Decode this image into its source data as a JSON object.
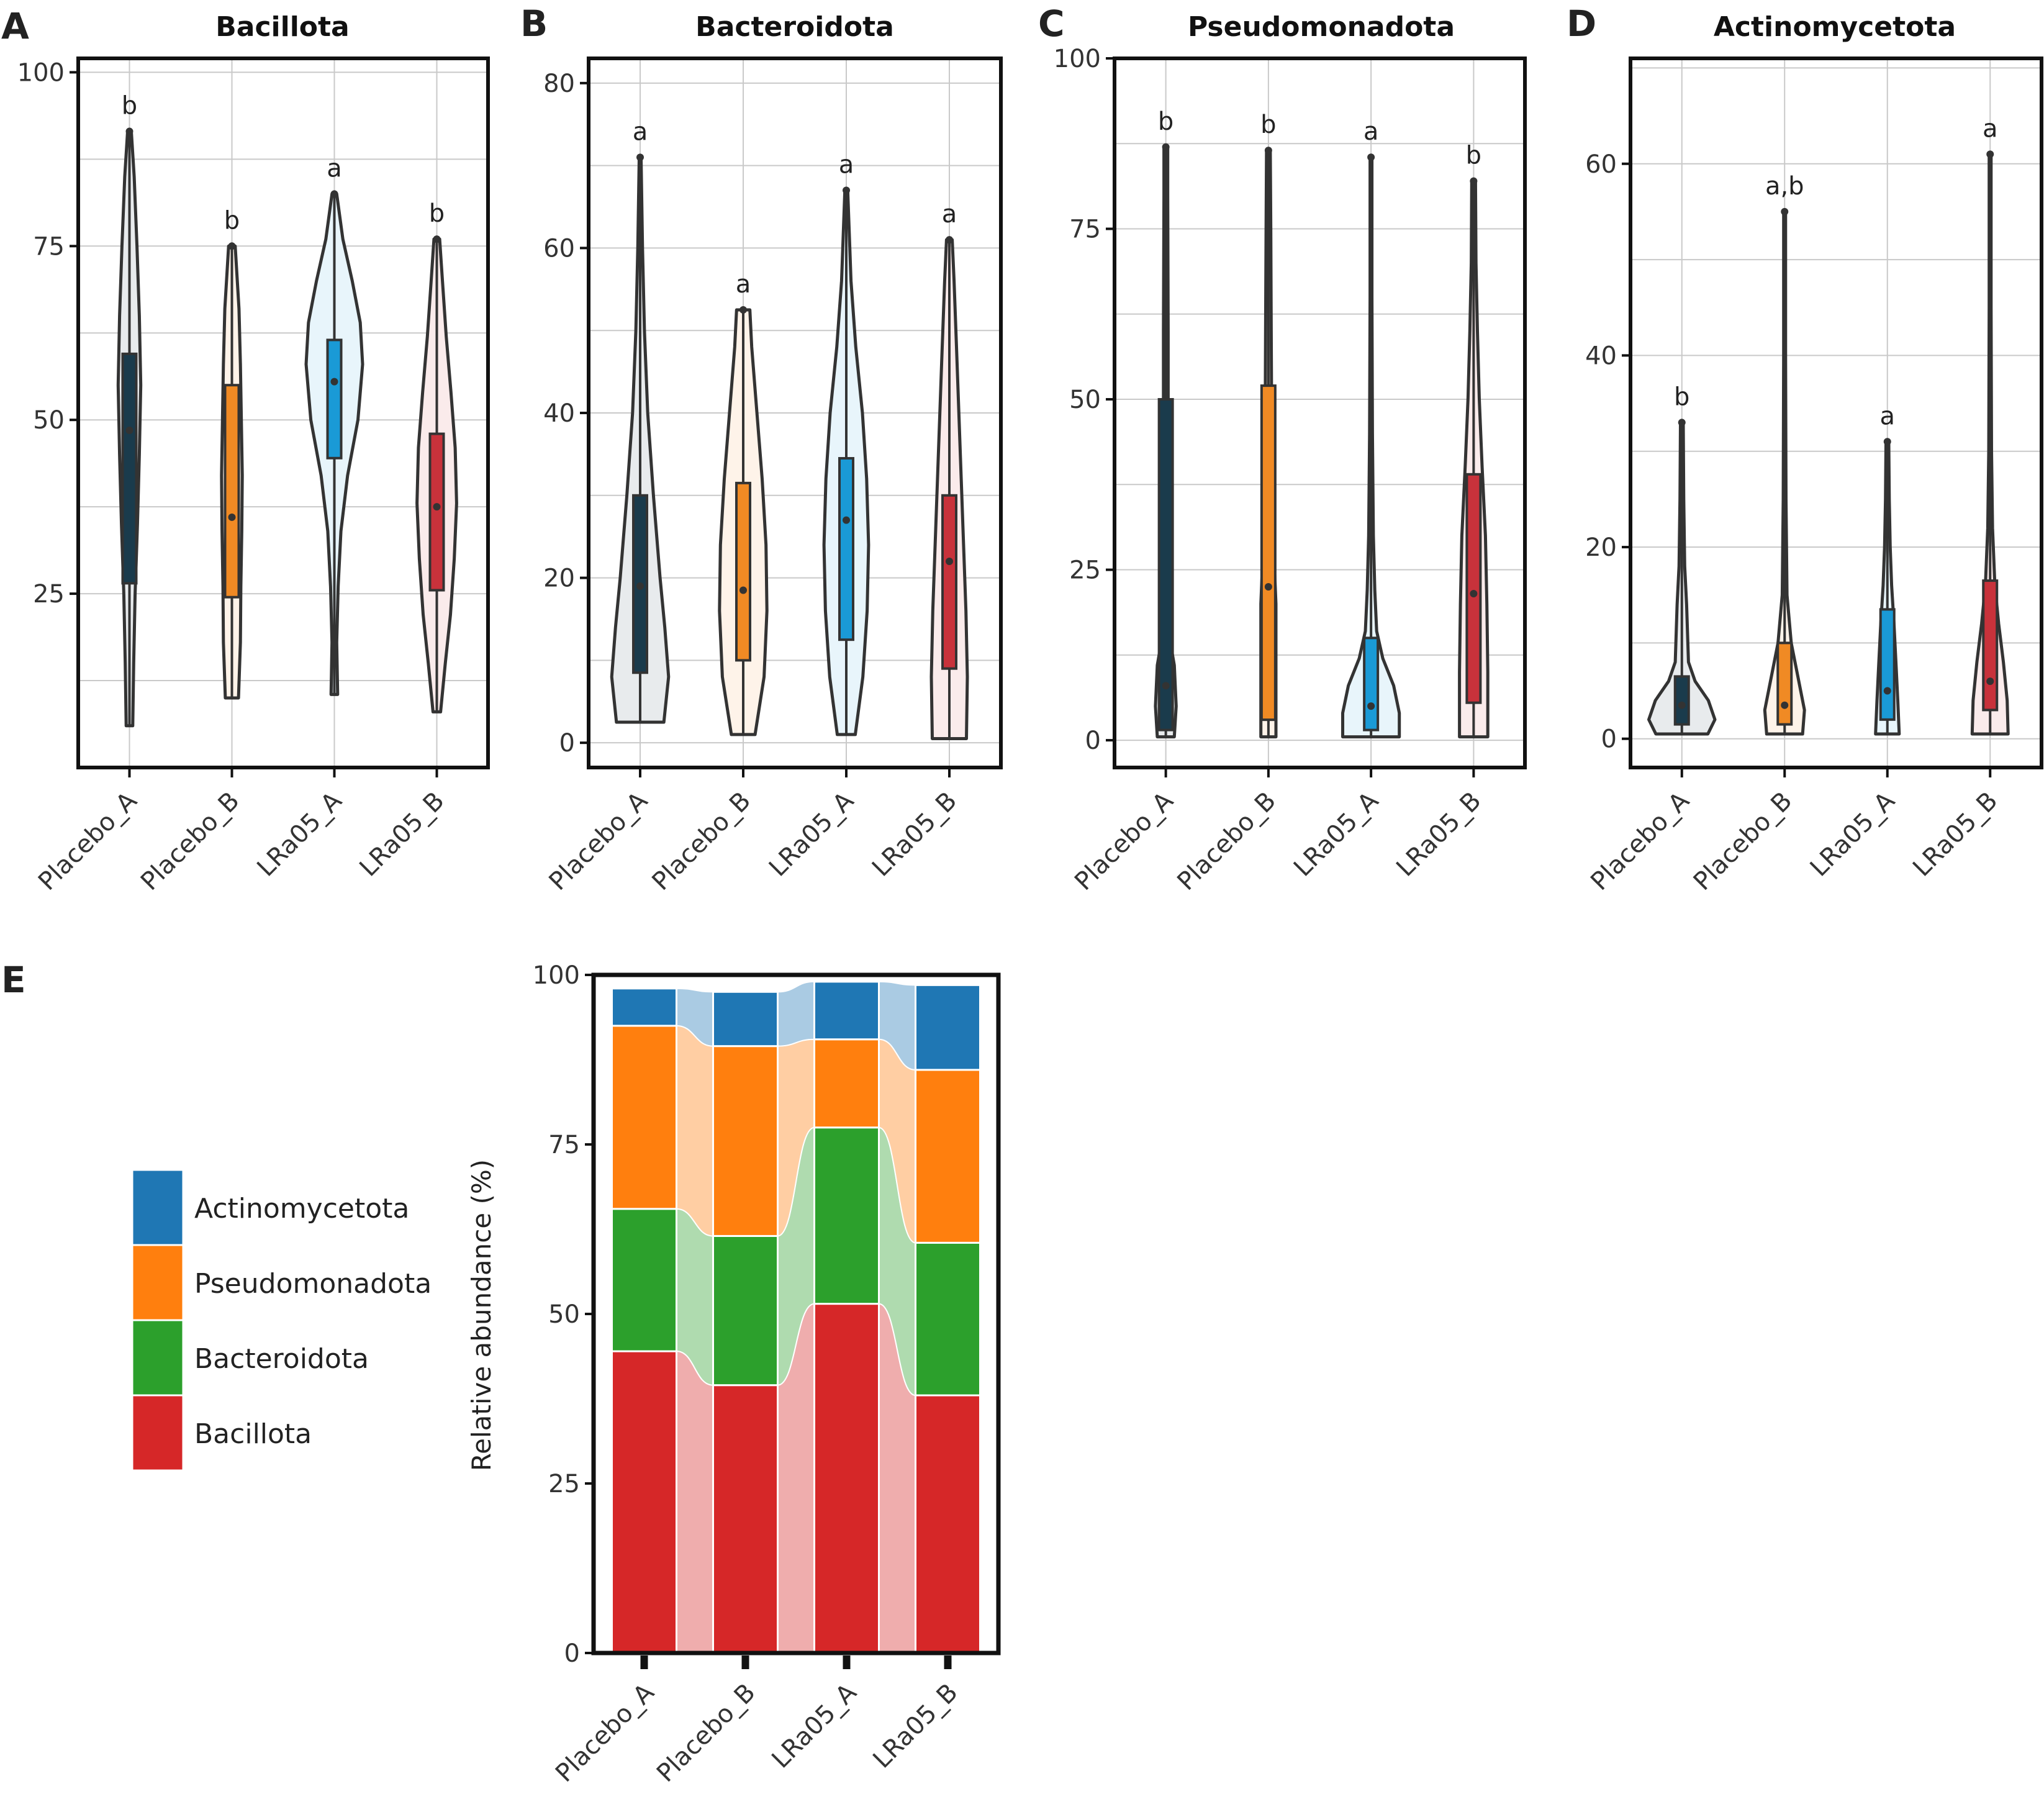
{
  "figure": {
    "panels": [
      {
        "letter": "A",
        "title": "Bacillota"
      },
      {
        "letter": "B",
        "title": "Bacteroidota"
      },
      {
        "letter": "C",
        "title": "Pseudomonadota"
      },
      {
        "letter": "D",
        "title": "Actinomycetota"
      },
      {
        "letter": "E",
        "title": ""
      }
    ]
  },
  "chart_data": [
    {
      "type": "violin",
      "panel": "A",
      "title": "Bacillota",
      "categories": [
        "Placebo_A",
        "Placebo_B",
        "LRa05_A",
        "LRa05_B"
      ],
      "ylim": [
        0,
        102
      ],
      "yticks": [
        25,
        50,
        75,
        100
      ],
      "grid": true,
      "colors": [
        "#1a3b4c",
        "#f08a24",
        "#1a9ad6",
        "#c8323b"
      ],
      "groups": [
        {
          "name": "Placebo_A",
          "min": 6,
          "q1": 26.5,
          "median": 48.5,
          "q3": 59.5,
          "max": 91.5,
          "significance": "b",
          "density": [
            [
              6,
              0.07
            ],
            [
              15,
              0.09
            ],
            [
              25,
              0.12
            ],
            [
              35,
              0.17
            ],
            [
              45,
              0.21
            ],
            [
              55,
              0.24
            ],
            [
              65,
              0.21
            ],
            [
              75,
              0.16
            ],
            [
              85,
              0.1
            ],
            [
              91.5,
              0.04
            ]
          ]
        },
        {
          "name": "Placebo_B",
          "min": 10,
          "q1": 24.5,
          "median": 36,
          "q3": 55,
          "max": 75,
          "significance": "b",
          "density": [
            [
              10,
              0.14
            ],
            [
              18,
              0.18
            ],
            [
              26,
              0.19
            ],
            [
              34,
              0.21
            ],
            [
              42,
              0.22
            ],
            [
              50,
              0.2
            ],
            [
              58,
              0.18
            ],
            [
              66,
              0.15
            ],
            [
              75,
              0.07
            ]
          ]
        },
        {
          "name": "LRa05_A",
          "min": 10.5,
          "q1": 44.5,
          "median": 55.5,
          "q3": 61.5,
          "max": 82.5,
          "significance": "a",
          "density": [
            [
              10.5,
              0.07
            ],
            [
              18,
              0.05
            ],
            [
              26,
              0.08
            ],
            [
              34,
              0.14
            ],
            [
              42,
              0.28
            ],
            [
              50,
              0.5
            ],
            [
              58,
              0.6
            ],
            [
              64,
              0.55
            ],
            [
              70,
              0.38
            ],
            [
              76,
              0.18
            ],
            [
              82.5,
              0.05
            ]
          ]
        },
        {
          "name": "LRa05_B",
          "min": 8,
          "q1": 25.5,
          "median": 37.5,
          "q3": 48,
          "max": 76,
          "significance": "b",
          "density": [
            [
              8,
              0.08
            ],
            [
              15,
              0.18
            ],
            [
              22,
              0.29
            ],
            [
              30,
              0.37
            ],
            [
              38,
              0.42
            ],
            [
              46,
              0.39
            ],
            [
              54,
              0.3
            ],
            [
              62,
              0.2
            ],
            [
              70,
              0.12
            ],
            [
              76,
              0.06
            ]
          ]
        }
      ]
    },
    {
      "type": "violin",
      "panel": "B",
      "title": "Bacteroidota",
      "categories": [
        "Placebo_A",
        "Placebo_B",
        "LRa05_A",
        "LRa05_B"
      ],
      "ylim": [
        -3,
        83
      ],
      "yticks": [
        0,
        20,
        40,
        60,
        80
      ],
      "grid": true,
      "colors": [
        "#1a3b4c",
        "#f08a24",
        "#1a9ad6",
        "#c8323b"
      ],
      "groups": [
        {
          "name": "Placebo_A",
          "min": 2.5,
          "q1": 8.5,
          "median": 19,
          "q3": 30,
          "max": 71,
          "significance": "a",
          "density": [
            [
              2.5,
              0.5
            ],
            [
              8,
              0.6
            ],
            [
              14,
              0.52
            ],
            [
              20,
              0.42
            ],
            [
              30,
              0.28
            ],
            [
              40,
              0.16
            ],
            [
              50,
              0.09
            ],
            [
              60,
              0.05
            ],
            [
              71,
              0.02
            ]
          ]
        },
        {
          "name": "Placebo_B",
          "min": 1,
          "q1": 10,
          "median": 18.5,
          "q3": 31.5,
          "max": 52.5,
          "significance": "a",
          "density": [
            [
              1,
              0.25
            ],
            [
              8,
              0.44
            ],
            [
              16,
              0.5
            ],
            [
              24,
              0.48
            ],
            [
              32,
              0.4
            ],
            [
              40,
              0.29
            ],
            [
              48,
              0.18
            ],
            [
              52.5,
              0.14
            ]
          ]
        },
        {
          "name": "LRa05_A",
          "min": 1,
          "q1": 12.5,
          "median": 27,
          "q3": 34.5,
          "max": 67,
          "significance": "a",
          "density": [
            [
              1,
              0.19
            ],
            [
              8,
              0.35
            ],
            [
              16,
              0.44
            ],
            [
              24,
              0.47
            ],
            [
              32,
              0.43
            ],
            [
              40,
              0.34
            ],
            [
              48,
              0.2
            ],
            [
              56,
              0.1
            ],
            [
              67,
              0.03
            ]
          ]
        },
        {
          "name": "LRa05_B",
          "min": 0.5,
          "q1": 9,
          "median": 22,
          "q3": 30,
          "max": 61,
          "significance": "a",
          "density": [
            [
              0.5,
              0.36
            ],
            [
              8,
              0.38
            ],
            [
              16,
              0.35
            ],
            [
              24,
              0.3
            ],
            [
              32,
              0.25
            ],
            [
              40,
              0.2
            ],
            [
              48,
              0.15
            ],
            [
              56,
              0.1
            ],
            [
              61,
              0.06
            ]
          ]
        }
      ]
    },
    {
      "type": "violin",
      "panel": "C",
      "title": "Pseudomonadota",
      "categories": [
        "Placebo_A",
        "Placebo_B",
        "LRa05_A",
        "LRa05_B"
      ],
      "ylim": [
        -4,
        100
      ],
      "yticks": [
        0,
        25,
        50,
        75,
        100
      ],
      "grid": true,
      "colors": [
        "#1a3b4c",
        "#f08a24",
        "#1a9ad6",
        "#c8323b"
      ],
      "groups": [
        {
          "name": "Placebo_A",
          "min": 0.5,
          "q1": 1.5,
          "median": 8,
          "q3": 50,
          "max": 87,
          "significance": "b",
          "density": [
            [
              0.5,
              0.18
            ],
            [
              5,
              0.22
            ],
            [
              11,
              0.18
            ],
            [
              15,
              0.08
            ],
            [
              25,
              0.05
            ],
            [
              40,
              0.05
            ],
            [
              60,
              0.05
            ],
            [
              80,
              0.04
            ],
            [
              87,
              0.04
            ]
          ]
        },
        {
          "name": "Placebo_B",
          "min": 0.5,
          "q1": 3,
          "median": 22.5,
          "q3": 52,
          "max": 86.5,
          "significance": "b",
          "density": [
            [
              0.5,
              0.16
            ],
            [
              10,
              0.16
            ],
            [
              20,
              0.16
            ],
            [
              30,
              0.1
            ],
            [
              45,
              0.07
            ],
            [
              60,
              0.06
            ],
            [
              75,
              0.05
            ],
            [
              86.5,
              0.04
            ]
          ]
        },
        {
          "name": "LRa05_A",
          "min": 0.5,
          "q1": 1.5,
          "median": 5,
          "q3": 15,
          "max": 85.5,
          "significance": "a",
          "density": [
            [
              0.5,
              0.6
            ],
            [
              4,
              0.6
            ],
            [
              8,
              0.48
            ],
            [
              12,
              0.25
            ],
            [
              16,
              0.12
            ],
            [
              22,
              0.08
            ],
            [
              30,
              0.05
            ],
            [
              45,
              0.03
            ],
            [
              65,
              0.02
            ],
            [
              85.5,
              0.02
            ]
          ]
        },
        {
          "name": "LRa05_B",
          "min": 0.5,
          "q1": 5.5,
          "median": 21.5,
          "q3": 39,
          "max": 82,
          "significance": "b",
          "density": [
            [
              0.5,
              0.3
            ],
            [
              10,
              0.3
            ],
            [
              20,
              0.28
            ],
            [
              30,
              0.25
            ],
            [
              40,
              0.18
            ],
            [
              50,
              0.12
            ],
            [
              60,
              0.08
            ],
            [
              70,
              0.05
            ],
            [
              82,
              0.04
            ]
          ]
        }
      ]
    },
    {
      "type": "violin",
      "panel": "D",
      "title": "Actinomycetota",
      "categories": [
        "Placebo_A",
        "Placebo_B",
        "LRa05_A",
        "LRa05_B"
      ],
      "ylim": [
        -3,
        71
      ],
      "yticks": [
        0,
        20,
        40,
        60
      ],
      "grid": true,
      "colors": [
        "#1a3b4c",
        "#f08a24",
        "#1a9ad6",
        "#c8323b"
      ],
      "groups": [
        {
          "name": "Placebo_A",
          "min": 0.5,
          "q1": 1.5,
          "median": 3.5,
          "q3": 6.5,
          "max": 33,
          "significance": "b",
          "density": [
            [
              0.5,
              0.55
            ],
            [
              2,
              0.7
            ],
            [
              4,
              0.56
            ],
            [
              6,
              0.28
            ],
            [
              8,
              0.14
            ],
            [
              11,
              0.12
            ],
            [
              14,
              0.1
            ],
            [
              18,
              0.06
            ],
            [
              25,
              0.04
            ],
            [
              33,
              0.03
            ]
          ]
        },
        {
          "name": "Placebo_B",
          "min": 0.5,
          "q1": 1.5,
          "median": 3.5,
          "q3": 10,
          "max": 55,
          "significance": "a,b",
          "density": [
            [
              0.5,
              0.38
            ],
            [
              3,
              0.42
            ],
            [
              6,
              0.3
            ],
            [
              10,
              0.14
            ],
            [
              15,
              0.05
            ],
            [
              25,
              0.03
            ],
            [
              40,
              0.02
            ],
            [
              55,
              0.02
            ]
          ]
        },
        {
          "name": "LRa05_A",
          "min": 0.5,
          "q1": 2,
          "median": 5,
          "q3": 13.5,
          "max": 31,
          "significance": "a",
          "density": [
            [
              0.5,
              0.25
            ],
            [
              4,
              0.22
            ],
            [
              8,
              0.18
            ],
            [
              12,
              0.14
            ],
            [
              16,
              0.09
            ],
            [
              20,
              0.06
            ],
            [
              25,
              0.04
            ],
            [
              31,
              0.03
            ]
          ]
        },
        {
          "name": "LRa05_B",
          "min": 0.5,
          "q1": 3,
          "median": 6,
          "q3": 16.5,
          "max": 61,
          "significance": "a",
          "density": [
            [
              0.5,
              0.38
            ],
            [
              4,
              0.36
            ],
            [
              8,
              0.28
            ],
            [
              12,
              0.18
            ],
            [
              16,
              0.1
            ],
            [
              22,
              0.05
            ],
            [
              30,
              0.03
            ],
            [
              45,
              0.02
            ],
            [
              61,
              0.02
            ]
          ]
        }
      ]
    },
    {
      "type": "stacked_bar",
      "panel": "E",
      "title": "",
      "ylabel": "Relative abundance (%)",
      "ylim": [
        0,
        100
      ],
      "yticks": [
        0,
        25,
        50,
        75,
        100
      ],
      "grid": false,
      "categories": [
        "Placebo_A",
        "Placebo_B",
        "LRa05_A",
        "LRa05_B"
      ],
      "legend_position": "left",
      "series": [
        {
          "name": "Bacillota",
          "color": "#d62728",
          "values": [
            44.5,
            39.5,
            51.5,
            38
          ]
        },
        {
          "name": "Bacteroidota",
          "color": "#2ca02c",
          "values": [
            21,
            22,
            26,
            22.5
          ]
        },
        {
          "name": "Pseudomonadota",
          "color": "#ff7f0e",
          "values": [
            27,
            28,
            13,
            25.5
          ]
        },
        {
          "name": "Actinomycetota",
          "color": "#1f77b4",
          "values": [
            5.5,
            8,
            8.5,
            12.5
          ]
        }
      ]
    }
  ]
}
